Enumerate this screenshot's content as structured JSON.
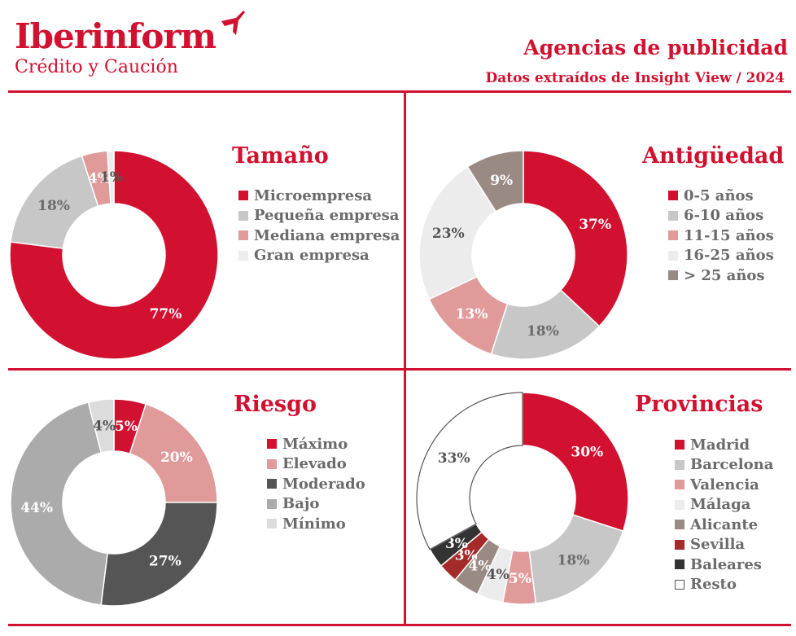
{
  "header": {
    "logo_name": "Iberinform",
    "logo_sub": "Crédito y Caución",
    "title": "Agencias de publicidad",
    "subtitle": "Datos extraídos de Insight View / 2024"
  },
  "colors": {
    "brand_red": "#d2102f"
  },
  "chart_data": [
    {
      "type": "pie",
      "title": "Tamaño",
      "categories": [
        "Microempresa",
        "Pequeña empresa",
        "Mediana empresa",
        "Gran empresa"
      ],
      "values": [
        77,
        18,
        4,
        1
      ],
      "labels": [
        "77%",
        "18%",
        "4%",
        "1%"
      ],
      "colors": [
        "#d2102f",
        "#c7c7c7",
        "#e09a9a",
        "#ececec"
      ],
      "legend": "right"
    },
    {
      "type": "pie",
      "title": "Antigüedad",
      "categories": [
        "0-5 años",
        "6-10 años",
        "11-15 años",
        "16-25 años",
        "> 25 años"
      ],
      "values": [
        37,
        18,
        13,
        23,
        9
      ],
      "labels": [
        "37%",
        "18%",
        "13%",
        "23%",
        "9%"
      ],
      "colors": [
        "#d2102f",
        "#c7c7c7",
        "#e09a9a",
        "#ececec",
        "#9a8a84"
      ],
      "legend": "right"
    },
    {
      "type": "pie",
      "title": "Riesgo",
      "categories": [
        "Máximo",
        "Elevado",
        "Moderado",
        "Bajo",
        "Mínimo"
      ],
      "values": [
        5,
        20,
        27,
        44,
        4
      ],
      "labels": [
        "5%",
        "20%",
        "27%",
        "44%",
        "4%"
      ],
      "colors": [
        "#d2102f",
        "#e09a9a",
        "#555555",
        "#ababab",
        "#dcdcdc"
      ],
      "legend": "right"
    },
    {
      "type": "pie",
      "title": "Provincias",
      "categories": [
        "Madrid",
        "Barcelona",
        "Valencia",
        "Málaga",
        "Alicante",
        "Sevilla",
        "Baleares",
        "Resto"
      ],
      "values": [
        30,
        18,
        5,
        4,
        4,
        3,
        3,
        33
      ],
      "labels": [
        "30%",
        "18%",
        "5%",
        "4%",
        "4%",
        "3%",
        "3%",
        "33%"
      ],
      "colors": [
        "#d2102f",
        "#c7c7c7",
        "#e09a9a",
        "#ececec",
        "#9a8a84",
        "#a52a2a",
        "#333333",
        "#ffffff"
      ],
      "legend": "right"
    }
  ]
}
